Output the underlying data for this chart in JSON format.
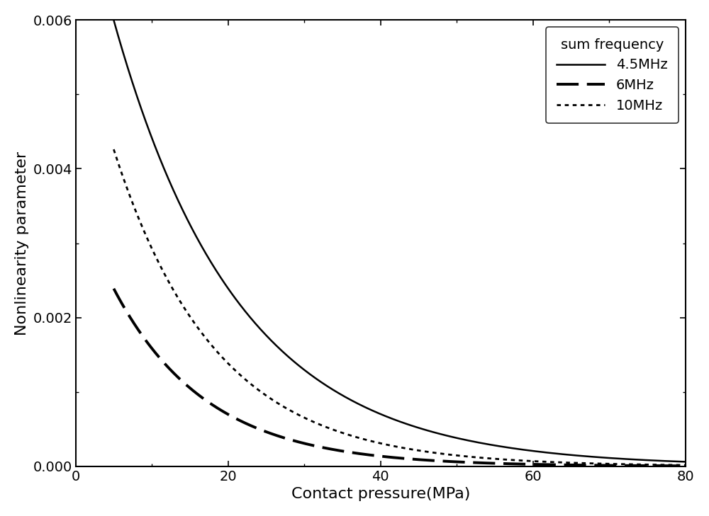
{
  "title": "",
  "xlabel": "Contact pressure(MPa)",
  "ylabel": "Nonlinearity parameter",
  "xlim": [
    0,
    80
  ],
  "ylim": [
    0,
    0.006
  ],
  "legend_title": "sum frequency",
  "legend_entries": [
    "4.5MHz",
    "6MHz",
    "10MHz"
  ],
  "background_color": "#ffffff",
  "xlabel_fontsize": 16,
  "ylabel_fontsize": 16,
  "tick_fontsize": 14,
  "legend_fontsize": 14,
  "curve_params": [
    {
      "A": 0.042,
      "B": 0.058,
      "label": "4.5MHz",
      "ls": "solid",
      "lw": 2.0
    },
    {
      "A": 0.014,
      "B": 0.072,
      "label": "6MHz",
      "ls": "dashed",
      "lw": 2.8
    },
    {
      "A": 0.022,
      "B": 0.068,
      "label": "10MHz",
      "ls": "dotted",
      "lw": 2.2
    }
  ]
}
